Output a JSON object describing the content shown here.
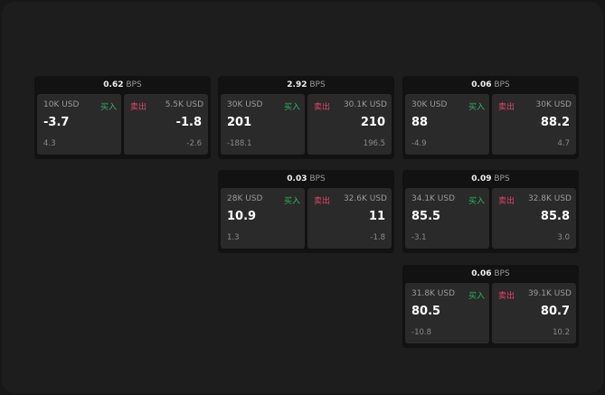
{
  "unit": "BPS",
  "colors": {
    "buy": "#2fb463",
    "sell": "#e8436e"
  },
  "buy_label": "买入",
  "sell_label": "卖出",
  "cards": [
    {
      "spread": "0.62",
      "bid_size": "10K USD",
      "bid": "-3.7",
      "bid_change": "4.3",
      "ask_size": "5.5K USD",
      "ask": "-1.8",
      "ask_change": "-2.6"
    },
    {
      "spread": "2.92",
      "bid_size": "30K USD",
      "bid": "201",
      "bid_change": "-188.1",
      "ask_size": "30.1K USD",
      "ask": "210",
      "ask_change": "196.5"
    },
    {
      "spread": "0.06",
      "bid_size": "30K USD",
      "bid": "88",
      "bid_change": "-4.9",
      "ask_size": "30K USD",
      "ask": "88.2",
      "ask_change": "4.7"
    },
    {
      "spread": "0.03",
      "bid_size": "28K USD",
      "bid": "10.9",
      "bid_change": "1.3",
      "ask_size": "32.6K USD",
      "ask": "11",
      "ask_change": "-1.8"
    },
    {
      "spread": "0.09",
      "bid_size": "34.1K USD",
      "bid": "85.5",
      "bid_change": "-3.1",
      "ask_size": "32.8K USD",
      "ask": "85.8",
      "ask_change": "3.0"
    },
    {
      "spread": "0.06",
      "bid_size": "31.8K USD",
      "bid": "80.5",
      "bid_change": "-10.8",
      "ask_size": "39.1K USD",
      "ask": "80.7",
      "ask_change": "10.2"
    }
  ]
}
